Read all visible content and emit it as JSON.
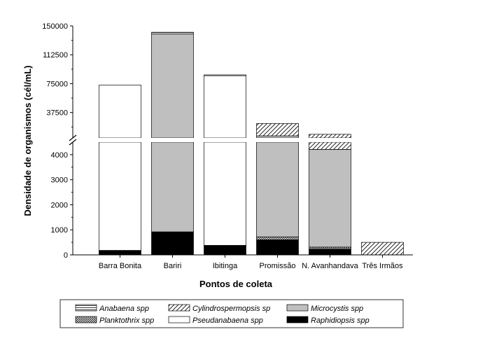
{
  "chart_data": {
    "type": "bar",
    "stacked": true,
    "broken_axis": true,
    "xlabel": "Pontos de coleta",
    "ylabel": "Densidade de organismos (cél/mL)",
    "categories": [
      "Barra Bonita",
      "Bariri",
      "Ibitinga",
      "Promissão",
      "N. Avanhandava",
      "Três Irmãos"
    ],
    "y_lower_range": [
      0,
      4500
    ],
    "y_lower_ticks": [
      0,
      1000,
      2000,
      3000,
      4000
    ],
    "y_lower_tick_labels": [
      "0",
      "1000",
      "2000",
      "3000",
      "4000"
    ],
    "y_upper_range": [
      4500,
      150000
    ],
    "y_upper_ticks": [
      37500,
      75000,
      112500,
      150000
    ],
    "y_upper_tick_labels": [
      "37500",
      "75000",
      "112500",
      "150000"
    ],
    "series": [
      {
        "name": "Raphidiopsis spp",
        "pattern": "solid-black",
        "values": [
          180,
          920,
          380,
          600,
          230,
          0
        ]
      },
      {
        "name": "Pseudanabaena spp",
        "pattern": "white",
        "values": [
          73000,
          0,
          85000,
          0,
          0,
          0
        ]
      },
      {
        "name": "Planktothrix spp",
        "pattern": "crosshatch",
        "values": [
          0,
          0,
          0,
          120,
          80,
          0
        ]
      },
      {
        "name": "Microcystis spp",
        "pattern": "gray",
        "values": [
          0,
          138800,
          0,
          6500,
          3900,
          0
        ]
      },
      {
        "name": "Cylindrospermopsis sp",
        "pattern": "diagonal",
        "values": [
          0,
          0,
          0,
          16000,
          5000,
          500
        ]
      },
      {
        "name": "Anabaena spp",
        "pattern": "horizontal-lines",
        "values": [
          0,
          2000,
          1000,
          0,
          0,
          0
        ]
      }
    ],
    "legend": {
      "placement": "bottom",
      "rows": [
        [
          "Anabaena spp",
          "Cylindrospermopsis sp",
          "Microcystis spp"
        ],
        [
          "Planktothrix spp",
          "Pseudanabaena spp",
          "Raphidiopsis spp"
        ]
      ]
    }
  },
  "colors": {
    "microcystis": "#bfbfbf",
    "raphidiopsis": "#000000",
    "pseudanabaena": "#ffffff",
    "axis": "#000000"
  }
}
